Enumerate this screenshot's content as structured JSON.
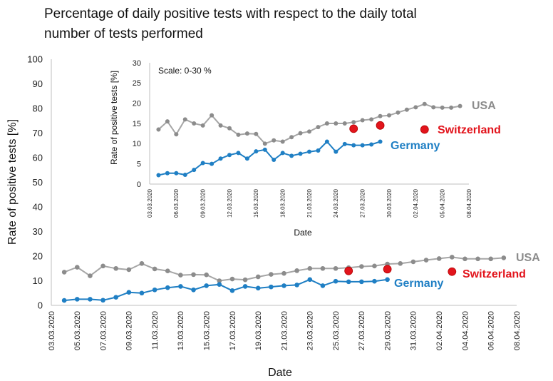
{
  "title_line1": "Percentage of daily positive tests with respect to the daily total",
  "title_line2": "number of tests performed",
  "colors": {
    "usa": "#8c8c8c",
    "germany": "#1f7fc4",
    "switzerland": "#e2141c",
    "axis": "#bfbfbf",
    "usa_line": "#a6a6a6"
  },
  "chart_data": [
    {
      "type": "line",
      "id": "main",
      "xlabel": "Date",
      "ylabel": "Rate of positive tests [%]",
      "ylim": [
        0,
        100
      ],
      "yticks": [
        0,
        10,
        20,
        30,
        40,
        50,
        60,
        70,
        80,
        90,
        100
      ],
      "xlim": [
        "03.03.2020",
        "08.04.2020"
      ],
      "xticks": [
        "03.03.2020",
        "05.03.2020",
        "07.03.2020",
        "09.03.2020",
        "11.03.2020",
        "13.03.2020",
        "15.03.2020",
        "17.03.2020",
        "19.03.2020",
        "21.03.2020",
        "23.03.2020",
        "25.03.2020",
        "27.03.2020",
        "29.03.2020",
        "31.03.2020",
        "02.04.2020",
        "04.04.2020",
        "06.04.2020",
        "08.04.2020"
      ],
      "grid": false,
      "series": [
        {
          "name": "USA",
          "color_key": "usa",
          "x": [
            "04.03.2020",
            "05.03.2020",
            "06.03.2020",
            "07.03.2020",
            "08.03.2020",
            "09.03.2020",
            "10.03.2020",
            "11.03.2020",
            "12.03.2020",
            "13.03.2020",
            "14.03.2020",
            "15.03.2020",
            "16.03.2020",
            "17.03.2020",
            "18.03.2020",
            "19.03.2020",
            "20.03.2020",
            "21.03.2020",
            "22.03.2020",
            "23.03.2020",
            "24.03.2020",
            "25.03.2020",
            "26.03.2020",
            "27.03.2020",
            "28.03.2020",
            "29.03.2020",
            "30.03.2020",
            "31.03.2020",
            "01.04.2020",
            "02.04.2020",
            "03.04.2020",
            "04.04.2020",
            "05.04.2020",
            "06.04.2020",
            "07.04.2020"
          ],
          "y": [
            13.5,
            15.5,
            12.0,
            16.0,
            15.0,
            14.5,
            17.0,
            14.8,
            14.0,
            12.3,
            12.5,
            12.4,
            10.0,
            10.7,
            10.4,
            11.6,
            12.6,
            13.0,
            14.1,
            15.0,
            15.0,
            15.0,
            15.3,
            15.8,
            16.0,
            16.8,
            17.0,
            17.7,
            18.4,
            19.0,
            19.6,
            18.9,
            18.9,
            18.9,
            19.3
          ]
        },
        {
          "name": "Germany",
          "color_key": "germany",
          "x": [
            "04.03.2020",
            "05.03.2020",
            "06.03.2020",
            "07.03.2020",
            "08.03.2020",
            "09.03.2020",
            "10.03.2020",
            "11.03.2020",
            "12.03.2020",
            "13.03.2020",
            "14.03.2020",
            "15.03.2020",
            "16.03.2020",
            "17.03.2020",
            "18.03.2020",
            "19.03.2020",
            "20.03.2020",
            "21.03.2020",
            "22.03.2020",
            "23.03.2020",
            "24.03.2020",
            "25.03.2020",
            "26.03.2020",
            "27.03.2020",
            "28.03.2020",
            "29.03.2020"
          ],
          "y": [
            2.0,
            2.5,
            2.5,
            2.1,
            3.3,
            5.3,
            5.0,
            6.3,
            7.2,
            7.7,
            6.3,
            8.0,
            8.5,
            6.0,
            7.7,
            7.0,
            7.5,
            8.0,
            8.3,
            10.5,
            8.0,
            9.8,
            9.6,
            9.6,
            9.8,
            10.5
          ]
        },
        {
          "name": "Switzerland",
          "color_key": "switzerland",
          "x": [
            "26.03.2020",
            "29.03.2020",
            "03.04.2020"
          ],
          "y": [
            14.0,
            14.7,
            13.7
          ]
        }
      ]
    },
    {
      "type": "line",
      "id": "inset",
      "annotation": "Scale: 0-30 %",
      "xlabel": "Date",
      "ylabel": "Rate of positive tests [%]",
      "ylim": [
        0,
        30
      ],
      "yticks": [
        0,
        5,
        10,
        15,
        20,
        25,
        30
      ],
      "xlim": [
        "03.03.2020",
        "08.04.2020"
      ],
      "xticks": [
        "03.03.2020",
        "06.03.2020",
        "09.03.2020",
        "12.03.2020",
        "15.03.2020",
        "18.03.2020",
        "21.03.2020",
        "24.03.2020",
        "27.03.2020",
        "30.03.2020",
        "02.04.2020",
        "05.04.2020",
        "08.04.2020"
      ],
      "grid": false,
      "series": [
        {
          "name": "USA",
          "color_key": "usa",
          "x": [
            "04.03.2020",
            "05.03.2020",
            "06.03.2020",
            "07.03.2020",
            "08.03.2020",
            "09.03.2020",
            "10.03.2020",
            "11.03.2020",
            "12.03.2020",
            "13.03.2020",
            "14.03.2020",
            "15.03.2020",
            "16.03.2020",
            "17.03.2020",
            "18.03.2020",
            "19.03.2020",
            "20.03.2020",
            "21.03.2020",
            "22.03.2020",
            "23.03.2020",
            "24.03.2020",
            "25.03.2020",
            "26.03.2020",
            "27.03.2020",
            "28.03.2020",
            "29.03.2020",
            "30.03.2020",
            "31.03.2020",
            "01.04.2020",
            "02.04.2020",
            "03.04.2020",
            "04.04.2020",
            "05.04.2020",
            "06.04.2020",
            "07.04.2020"
          ],
          "y": [
            13.5,
            15.5,
            12.3,
            16.0,
            15.0,
            14.5,
            17.0,
            14.5,
            13.8,
            12.2,
            12.5,
            12.4,
            10.0,
            10.8,
            10.5,
            11.6,
            12.6,
            13.0,
            14.1,
            15.0,
            15.0,
            15.0,
            15.3,
            15.8,
            16.0,
            16.8,
            17.0,
            17.7,
            18.4,
            19.0,
            19.8,
            19.0,
            18.9,
            18.9,
            19.3
          ]
        },
        {
          "name": "Germany",
          "color_key": "germany",
          "x": [
            "04.03.2020",
            "05.03.2020",
            "06.03.2020",
            "07.03.2020",
            "08.03.2020",
            "09.03.2020",
            "10.03.2020",
            "11.03.2020",
            "12.03.2020",
            "13.03.2020",
            "14.03.2020",
            "15.03.2020",
            "16.03.2020",
            "17.03.2020",
            "18.03.2020",
            "19.03.2020",
            "20.03.2020",
            "21.03.2020",
            "22.03.2020",
            "23.03.2020",
            "24.03.2020",
            "25.03.2020",
            "26.03.2020",
            "27.03.2020",
            "28.03.2020",
            "29.03.2020"
          ],
          "y": [
            2.2,
            2.7,
            2.7,
            2.3,
            3.5,
            5.2,
            5.0,
            6.3,
            7.2,
            7.7,
            6.3,
            8.1,
            8.5,
            6.0,
            7.7,
            7.0,
            7.5,
            8.0,
            8.3,
            10.5,
            8.0,
            9.9,
            9.6,
            9.6,
            9.8,
            10.5
          ]
        },
        {
          "name": "Switzerland",
          "color_key": "switzerland",
          "x": [
            "26.03.2020",
            "29.03.2020",
            "03.04.2020"
          ],
          "y": [
            13.7,
            14.5,
            13.5
          ]
        }
      ]
    }
  ]
}
